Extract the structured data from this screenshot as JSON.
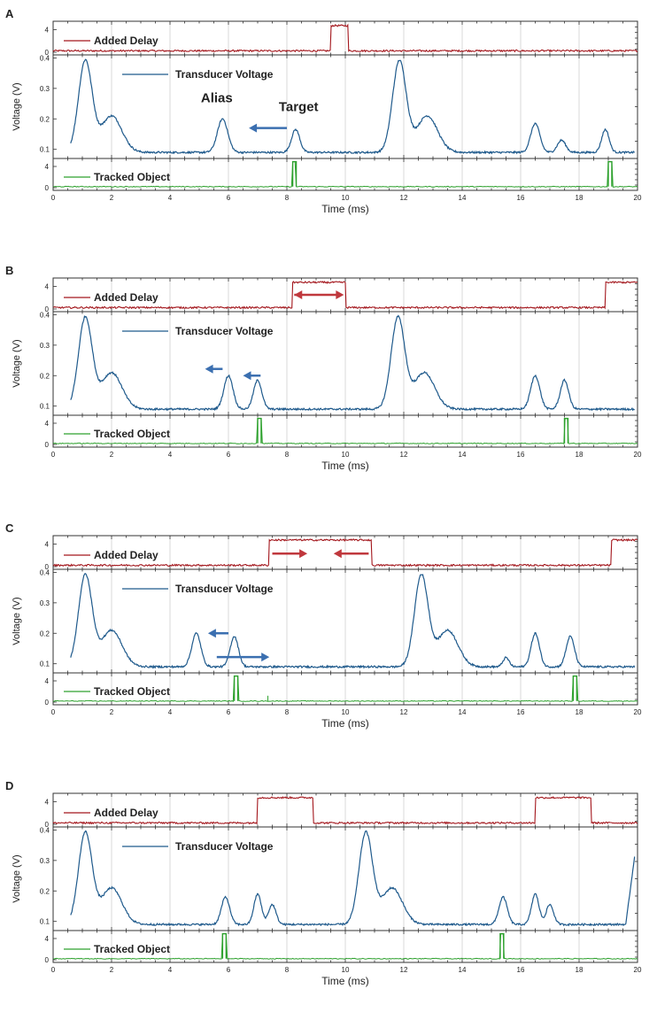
{
  "colors": {
    "delay": "#a3161c",
    "voltage": "#1f5a8c",
    "tracked": "#2da12d",
    "grid": "#d9d9d9",
    "axis": "#333333",
    "arrow_blue": "#3b6fb0",
    "arrow_red": "#c0383d"
  },
  "chart_data": [
    {
      "type": "line",
      "panel_label": "A",
      "xlabel": "Time (ms)",
      "ylabel": "Voltage (V)",
      "xlim": [
        0,
        20
      ],
      "xticks": [
        "0",
        "2",
        "4",
        "6",
        "8",
        "10",
        "12",
        "14",
        "16",
        "18",
        "20"
      ],
      "delay": {
        "legend": "Added Delay",
        "ylim": [
          0,
          5
        ],
        "yticks": [
          "0",
          "4"
        ],
        "segments": [
          [
            9.5,
            10.1
          ]
        ]
      },
      "voltage": {
        "legend": "Transducer Voltage",
        "ylim": [
          0.07,
          0.41
        ],
        "yticks": [
          "0.1",
          "0.2",
          "0.3",
          "0.4"
        ],
        "end_rise": false,
        "peaks": [
          {
            "t": 1.1,
            "a": 0.3,
            "w": 0.33
          },
          {
            "t": 2.0,
            "a": 0.12,
            "w": 0.5
          },
          {
            "t": 5.8,
            "a": 0.11,
            "w": 0.25
          },
          {
            "t": 8.3,
            "a": 0.075,
            "w": 0.2
          },
          {
            "t": 11.85,
            "a": 0.3,
            "w": 0.33
          },
          {
            "t": 12.8,
            "a": 0.12,
            "w": 0.5
          },
          {
            "t": 16.5,
            "a": 0.095,
            "w": 0.22
          },
          {
            "t": 17.4,
            "a": 0.04,
            "w": 0.2
          },
          {
            "t": 18.9,
            "a": 0.075,
            "w": 0.18
          }
        ]
      },
      "tracked": {
        "legend": "Tracked Object",
        "ylim": [
          0,
          5
        ],
        "yticks": [
          "0",
          "4"
        ],
        "pulses": [
          8.2,
          19.0
        ],
        "tiny": []
      },
      "annotations": [
        {
          "text": "Alias",
          "t": 5.6,
          "v": 0.255
        },
        {
          "text": "Target",
          "t": 8.4,
          "v": 0.225
        }
      ],
      "arrows": [
        {
          "t1": 8.0,
          "t2": 6.7,
          "v": 0.17,
          "color": "arrow_blue",
          "double": false
        }
      ]
    },
    {
      "type": "line",
      "panel_label": "B",
      "xlabel": "Time (ms)",
      "ylabel": "Voltage (V)",
      "xlim": [
        0,
        20
      ],
      "xticks": [
        "0",
        "2",
        "4",
        "6",
        "8",
        "10",
        "12",
        "14",
        "16",
        "18",
        "20"
      ],
      "delay": {
        "legend": "Added Delay",
        "ylim": [
          0,
          5
        ],
        "yticks": [
          "0",
          "4"
        ],
        "segments": [
          [
            8.2,
            10.0
          ],
          [
            18.9,
            20.0
          ]
        ]
      },
      "voltage": {
        "legend": "Transducer Voltage",
        "ylim": [
          0.07,
          0.41
        ],
        "yticks": [
          "0.1",
          "0.2",
          "0.3",
          "0.4"
        ],
        "end_rise": false,
        "peaks": [
          {
            "t": 1.1,
            "a": 0.3,
            "w": 0.33
          },
          {
            "t": 2.0,
            "a": 0.12,
            "w": 0.5
          },
          {
            "t": 6.0,
            "a": 0.11,
            "w": 0.22
          },
          {
            "t": 7.0,
            "a": 0.095,
            "w": 0.2
          },
          {
            "t": 11.8,
            "a": 0.3,
            "w": 0.33
          },
          {
            "t": 12.7,
            "a": 0.12,
            "w": 0.5
          },
          {
            "t": 16.5,
            "a": 0.11,
            "w": 0.22
          },
          {
            "t": 17.5,
            "a": 0.095,
            "w": 0.2
          }
        ]
      },
      "tracked": {
        "legend": "Tracked Object",
        "ylim": [
          0,
          5
        ],
        "yticks": [
          "0",
          "4"
        ],
        "pulses": [
          7.0,
          17.5
        ],
        "tiny": []
      },
      "annotations": [],
      "arrows": [
        {
          "t1": 8.25,
          "t2": 9.95,
          "v": 2.5,
          "color": "arrow_red",
          "double": true,
          "panel": "delay"
        },
        {
          "t1": 5.8,
          "t2": 5.2,
          "v": 0.222,
          "color": "arrow_blue",
          "double": false
        },
        {
          "t1": 7.1,
          "t2": 6.5,
          "v": 0.2,
          "color": "arrow_blue",
          "double": false
        }
      ]
    },
    {
      "type": "line",
      "panel_label": "C",
      "xlabel": "Time (ms)",
      "ylabel": "Voltage (V)",
      "xlim": [
        0,
        20
      ],
      "xticks": [
        "0",
        "2",
        "4",
        "6",
        "8",
        "10",
        "12",
        "14",
        "16",
        "18",
        "20"
      ],
      "delay": {
        "legend": "Added Delay",
        "ylim": [
          0,
          5
        ],
        "yticks": [
          "0",
          "4"
        ],
        "segments": [
          [
            7.4,
            10.9
          ],
          [
            19.1,
            20.0
          ]
        ]
      },
      "voltage": {
        "legend": "Transducer Voltage",
        "ylim": [
          0.07,
          0.41
        ],
        "yticks": [
          "0.1",
          "0.2",
          "0.3",
          "0.4"
        ],
        "end_rise": false,
        "peaks": [
          {
            "t": 1.1,
            "a": 0.3,
            "w": 0.33
          },
          {
            "t": 2.0,
            "a": 0.12,
            "w": 0.5
          },
          {
            "t": 4.9,
            "a": 0.11,
            "w": 0.22
          },
          {
            "t": 6.2,
            "a": 0.1,
            "w": 0.2
          },
          {
            "t": 12.6,
            "a": 0.3,
            "w": 0.33
          },
          {
            "t": 13.5,
            "a": 0.12,
            "w": 0.5
          },
          {
            "t": 15.5,
            "a": 0.03,
            "w": 0.15
          },
          {
            "t": 16.5,
            "a": 0.11,
            "w": 0.2
          },
          {
            "t": 17.7,
            "a": 0.1,
            "w": 0.2
          }
        ]
      },
      "tracked": {
        "legend": "Tracked Object",
        "ylim": [
          0,
          5
        ],
        "yticks": [
          "0",
          "4"
        ],
        "pulses": [
          6.2,
          17.8
        ],
        "tiny": [
          7.35
        ]
      },
      "annotations": [],
      "arrows": [
        {
          "t1": 7.5,
          "t2": 8.7,
          "v": 2.3,
          "color": "arrow_red",
          "double": false,
          "panel": "delay"
        },
        {
          "t1": 10.8,
          "t2": 9.6,
          "v": 2.3,
          "color": "arrow_red",
          "double": false,
          "panel": "delay"
        },
        {
          "t1": 6.0,
          "t2": 5.3,
          "v": 0.2,
          "color": "arrow_blue",
          "double": false
        },
        {
          "t1": 5.6,
          "t2": 7.4,
          "v": 0.122,
          "color": "arrow_blue",
          "double": false
        }
      ]
    },
    {
      "type": "line",
      "panel_label": "D",
      "xlabel": "Time (ms)",
      "ylabel": "Voltage (V)",
      "xlim": [
        0,
        20
      ],
      "xticks": [
        "0",
        "2",
        "4",
        "6",
        "8",
        "10",
        "12",
        "14",
        "16",
        "18",
        "20"
      ],
      "delay": {
        "legend": "Added Delay",
        "ylim": [
          0,
          5
        ],
        "yticks": [
          "0",
          "4"
        ],
        "segments": [
          [
            7.0,
            8.9
          ],
          [
            16.5,
            18.4
          ]
        ]
      },
      "voltage": {
        "legend": "Transducer Voltage",
        "ylim": [
          0.07,
          0.41
        ],
        "yticks": [
          "0.1",
          "0.2",
          "0.3",
          "0.4"
        ],
        "end_rise": true,
        "peaks": [
          {
            "t": 1.1,
            "a": 0.3,
            "w": 0.33
          },
          {
            "t": 2.0,
            "a": 0.12,
            "w": 0.5
          },
          {
            "t": 5.9,
            "a": 0.09,
            "w": 0.2
          },
          {
            "t": 7.0,
            "a": 0.1,
            "w": 0.18
          },
          {
            "t": 7.5,
            "a": 0.065,
            "w": 0.18
          },
          {
            "t": 10.7,
            "a": 0.3,
            "w": 0.33
          },
          {
            "t": 11.6,
            "a": 0.12,
            "w": 0.5
          },
          {
            "t": 15.4,
            "a": 0.09,
            "w": 0.2
          },
          {
            "t": 16.5,
            "a": 0.1,
            "w": 0.18
          },
          {
            "t": 17.0,
            "a": 0.065,
            "w": 0.18
          }
        ]
      },
      "tracked": {
        "legend": "Tracked Object",
        "ylim": [
          0,
          5
        ],
        "yticks": [
          "0",
          "4"
        ],
        "pulses": [
          5.8,
          15.3
        ],
        "tiny": []
      },
      "annotations": [],
      "arrows": []
    }
  ]
}
